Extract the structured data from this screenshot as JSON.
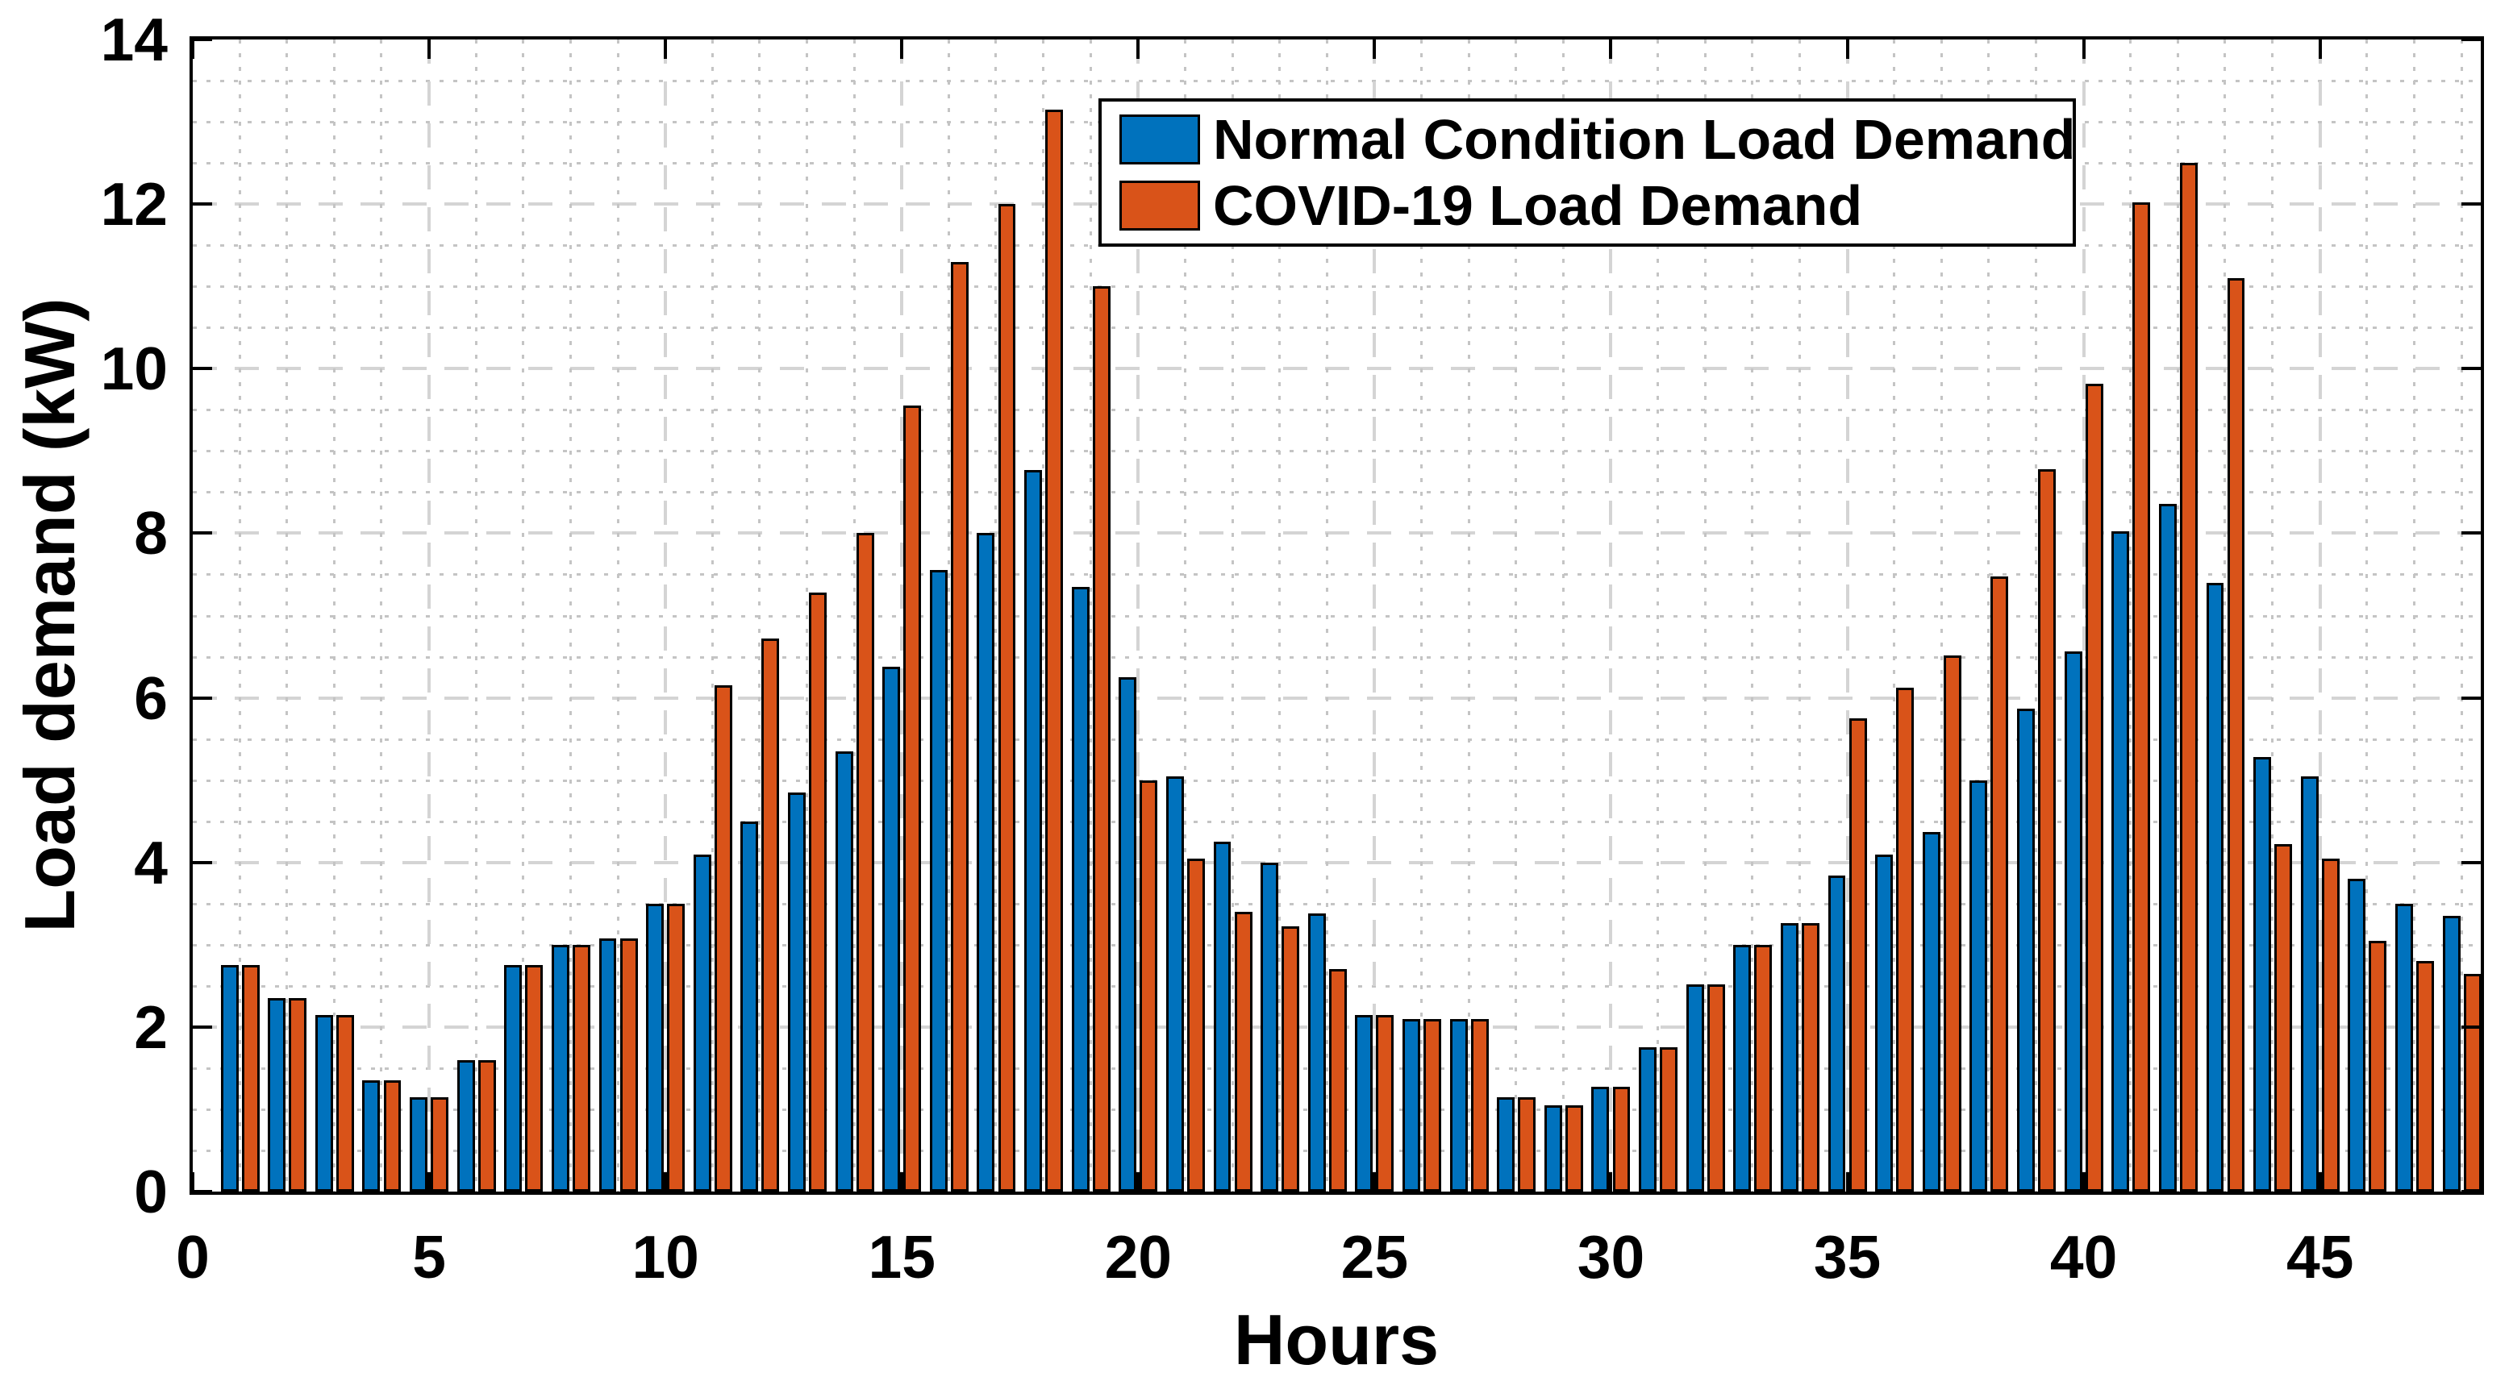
{
  "chart_data": {
    "type": "bar",
    "title": "",
    "xlabel": "Hours",
    "ylabel": "Load demand (kW)",
    "xlim": [
      0,
      48.4
    ],
    "ylim": [
      0,
      14
    ],
    "xticks": [
      0,
      5,
      10,
      15,
      20,
      25,
      30,
      35,
      40,
      45
    ],
    "yticks": [
      0,
      2,
      4,
      6,
      8,
      10,
      12,
      14
    ],
    "minor_grid_step_y": 0.5,
    "minor_grid_step_x": 1,
    "grid": {
      "major_style": "dashed",
      "minor_style": "dotted",
      "major_color": "#d4d4d4",
      "minor_color": "#c4c4c4"
    },
    "axis_color": "#000000",
    "bar_edge_color": "#000000",
    "legend_position": "upper-center-inside",
    "categories": [
      1,
      2,
      3,
      4,
      5,
      6,
      7,
      8,
      9,
      10,
      11,
      12,
      13,
      14,
      15,
      16,
      17,
      18,
      19,
      20,
      21,
      22,
      23,
      24,
      25,
      26,
      27,
      28,
      29,
      30,
      31,
      32,
      33,
      34,
      35,
      36,
      37,
      38,
      39,
      40,
      41,
      42,
      43,
      44,
      45,
      46,
      47,
      48
    ],
    "series": [
      {
        "name": "Normal Condition Load Demand",
        "color": "#0072BD",
        "values": [
          2.75,
          2.35,
          2.15,
          1.35,
          1.15,
          1.6,
          2.75,
          3.0,
          3.08,
          3.5,
          4.1,
          4.5,
          4.85,
          5.35,
          6.38,
          7.55,
          8.0,
          8.77,
          7.35,
          6.25,
          5.05,
          4.25,
          4.0,
          3.38,
          2.15,
          2.1,
          2.1,
          1.15,
          1.05,
          1.27,
          1.75,
          2.52,
          3.0,
          3.26,
          3.84,
          4.1,
          4.37,
          5.0,
          5.87,
          6.56,
          8.02,
          8.36,
          7.4,
          5.28,
          5.05,
          3.8,
          3.5,
          3.35
        ]
      },
      {
        "name": "COVID-19 Load Demand",
        "color": "#D95319",
        "values": [
          2.75,
          2.35,
          2.15,
          1.35,
          1.15,
          1.6,
          2.75,
          3.0,
          3.08,
          3.5,
          6.15,
          6.72,
          7.28,
          8.0,
          9.55,
          11.3,
          12.0,
          13.15,
          11.0,
          5.0,
          4.05,
          3.4,
          3.22,
          2.7,
          2.15,
          2.1,
          2.1,
          1.15,
          1.05,
          1.27,
          1.75,
          2.52,
          3.0,
          3.26,
          5.75,
          6.12,
          6.52,
          7.48,
          8.78,
          9.82,
          12.02,
          12.5,
          11.1,
          4.22,
          4.05,
          3.05,
          2.8,
          2.65
        ]
      }
    ]
  }
}
